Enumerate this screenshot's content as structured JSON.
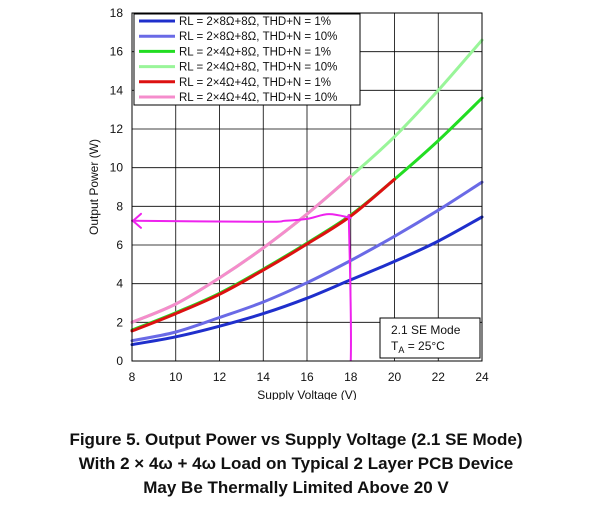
{
  "chart_data": {
    "type": "line",
    "title": "",
    "xlabel": "Supply Voltage (V)",
    "ylabel": "Output Power (W)",
    "xlim": [
      8,
      24
    ],
    "ylim": [
      0,
      18
    ],
    "xticks": [
      8,
      10,
      12,
      14,
      16,
      18,
      20,
      22,
      24
    ],
    "yticks": [
      0,
      2,
      4,
      6,
      8,
      10,
      12,
      14,
      16,
      18
    ],
    "grid": true,
    "legend_position": "top-left",
    "series": [
      {
        "name": "RL = 2×8Ω+8Ω, THD+N = 1%",
        "color": "#1f2fcc",
        "x": [
          8,
          10,
          12,
          14,
          16,
          18,
          20,
          22,
          24
        ],
        "y": [
          0.85,
          1.25,
          1.8,
          2.45,
          3.25,
          4.2,
          5.15,
          6.2,
          7.45
        ]
      },
      {
        "name": "RL = 2×8Ω+8Ω, THD+N = 10%",
        "color": "#6a6ae6",
        "x": [
          8,
          10,
          12,
          14,
          16,
          18,
          20,
          22,
          24
        ],
        "y": [
          1.05,
          1.5,
          2.25,
          3.05,
          4.05,
          5.2,
          6.45,
          7.8,
          9.25
        ]
      },
      {
        "name": "RL = 2×4Ω+8Ω, THD+N = 1%",
        "color": "#22dd22",
        "x": [
          8,
          10,
          12,
          14,
          16,
          18,
          20,
          22,
          24
        ],
        "y": [
          1.6,
          2.5,
          3.5,
          4.75,
          6.1,
          7.55,
          9.4,
          11.4,
          13.6
        ]
      },
      {
        "name": "RL = 2×4Ω+8Ω, THD+N = 10%",
        "color": "#99f599",
        "x": [
          8,
          10,
          12,
          14,
          16,
          18,
          20,
          22,
          24
        ],
        "y": [
          2.0,
          2.95,
          4.3,
          5.85,
          7.6,
          9.55,
          11.6,
          14.0,
          16.6
        ]
      },
      {
        "name": "RL = 2×4Ω+4Ω, THD+N = 1%",
        "color": "#dd1111",
        "x": [
          8,
          10,
          12,
          14,
          16,
          18,
          20
        ],
        "y": [
          1.55,
          2.45,
          3.45,
          4.7,
          6.05,
          7.5,
          9.4
        ]
      },
      {
        "name": "RL = 2×4Ω+4Ω, THD+N = 10%",
        "color": "#f58ccc",
        "x": [
          8,
          10,
          12,
          14,
          16,
          18
        ],
        "y": [
          2.0,
          2.95,
          4.3,
          5.85,
          7.6,
          9.55
        ]
      }
    ],
    "annotations": [
      {
        "text": "2.1 SE Mode",
        "subtext_main": "T",
        "subtext_sub": "A",
        "subtext_rest": " = 25°C"
      }
    ],
    "handdrawn_markup": {
      "color": "#ee22ee",
      "horizontal_line": {
        "x": [
          8,
          14,
          15,
          16,
          17,
          18
        ],
        "y": [
          7.25,
          7.2,
          7.25,
          7.35,
          7.6,
          7.4
        ]
      },
      "vertical_line": {
        "x": [
          18,
          18
        ],
        "y": [
          7.6,
          0
        ]
      }
    }
  },
  "caption": {
    "line1": "Figure 5. Output Power vs Supply Voltage (2.1 SE Mode)",
    "line2": "With 2 × 4ω + 4ω Load on Typical 2 Layer PCB Device",
    "line3": "May Be Thermally Limited Above 20 V"
  }
}
